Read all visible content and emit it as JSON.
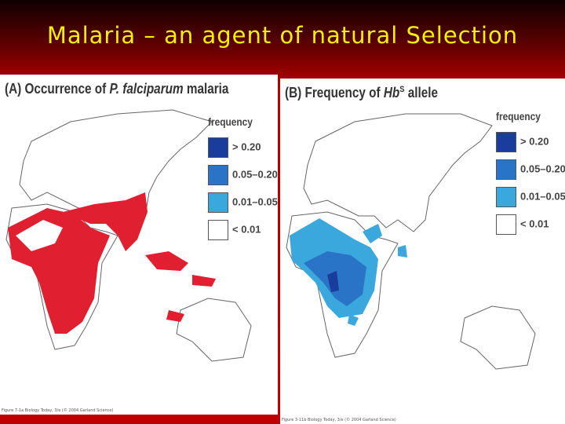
{
  "title": "Malaria – an agent of natural Selection",
  "panels": [
    {
      "heading": [
        "(A) Occurrence of ",
        "P. falciparum",
        " malaria"
      ],
      "legend_title": "frequency",
      "legend": [
        "> 0.20",
        "0.05–0.20",
        "0.01–0.05",
        "< 0.01"
      ],
      "credit": "Figure 7-1a Biology Today, 3/e (© 2004 Garland Science)"
    },
    {
      "heading": [
        "(B) Frequency of ",
        "Hb",
        "S",
        " allele"
      ],
      "legend_title": "frequency",
      "legend": [
        "> 0.20",
        "0.05–0.20",
        "0.01–0.05",
        "< 0.01"
      ],
      "credit": "Figure 3-11b Biology Today, 3/e (© 2004 Garland Science)"
    }
  ]
}
